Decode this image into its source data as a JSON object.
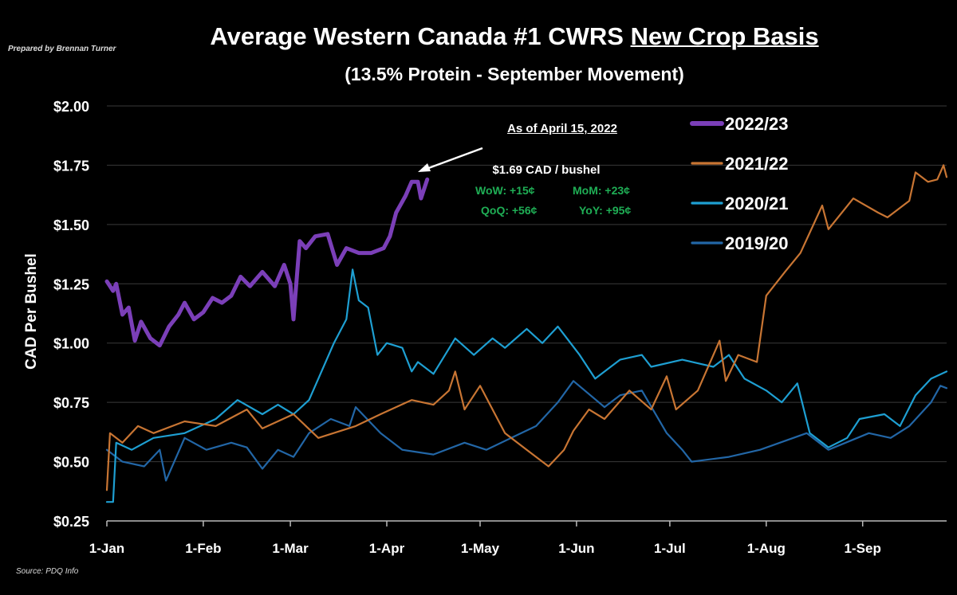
{
  "header": {
    "prepared_by": "Prepared by Brennan Turner",
    "title_main": "Average Western Canada #1 CWRS ",
    "title_underlined": "New Crop Basis",
    "subtitle": "(13.5% Protein - September Movement)",
    "source": "Source: PDQ Info"
  },
  "annotation": {
    "as_of": "As of April 15, 2022",
    "price": "$1.69 CAD / bushel",
    "wow": "WoW: +15¢",
    "mom": "MoM: +23¢",
    "qoq": "QoQ: +56¢",
    "yoy": "YoY: +95¢"
  },
  "chart_data": {
    "type": "line",
    "title": "Average Western Canada #1 CWRS New Crop Basis",
    "subtitle": "(13.5% Protein - September Movement)",
    "xlabel": "",
    "ylabel": "CAD Per Bushel",
    "x_unit": "day of year (0 = 1-Jan)",
    "xlim": [
      0,
      270
    ],
    "ylim": [
      0.25,
      2.0
    ],
    "yticks": [
      0.25,
      0.5,
      0.75,
      1.0,
      1.25,
      1.5,
      1.75,
      2.0
    ],
    "ytick_labels": [
      "$0.25",
      "$0.50",
      "$0.75",
      "$1.00",
      "$1.25",
      "$1.50",
      "$1.75",
      "$2.00"
    ],
    "xticks": [
      0,
      31,
      59,
      90,
      120,
      151,
      181,
      212,
      243
    ],
    "xtick_labels": [
      "1-Jan",
      "1-Feb",
      "1-Mar",
      "1-Apr",
      "1-May",
      "1-Jun",
      "1-Jul",
      "1-Aug",
      "1-Sep"
    ],
    "grid": "horizontal",
    "legend": "top-right",
    "series": [
      {
        "name": "2022/23",
        "color": "#7b3fb8",
        "width": 5,
        "points": [
          [
            0,
            1.26
          ],
          [
            2,
            1.22
          ],
          [
            3,
            1.25
          ],
          [
            5,
            1.12
          ],
          [
            7,
            1.15
          ],
          [
            9,
            1.01
          ],
          [
            11,
            1.09
          ],
          [
            14,
            1.02
          ],
          [
            17,
            0.99
          ],
          [
            20,
            1.07
          ],
          [
            23,
            1.12
          ],
          [
            25,
            1.17
          ],
          [
            28,
            1.1
          ],
          [
            31,
            1.13
          ],
          [
            34,
            1.19
          ],
          [
            37,
            1.17
          ],
          [
            40,
            1.2
          ],
          [
            43,
            1.28
          ],
          [
            46,
            1.24
          ],
          [
            50,
            1.3
          ],
          [
            54,
            1.24
          ],
          [
            57,
            1.33
          ],
          [
            59,
            1.25
          ],
          [
            60,
            1.1
          ],
          [
            62,
            1.43
          ],
          [
            64,
            1.4
          ],
          [
            67,
            1.45
          ],
          [
            71,
            1.46
          ],
          [
            74,
            1.33
          ],
          [
            77,
            1.4
          ],
          [
            81,
            1.38
          ],
          [
            85,
            1.38
          ],
          [
            89,
            1.4
          ],
          [
            91,
            1.45
          ],
          [
            93,
            1.55
          ],
          [
            96,
            1.62
          ],
          [
            98,
            1.68
          ],
          [
            100,
            1.68
          ],
          [
            101,
            1.61
          ],
          [
            103,
            1.69
          ]
        ]
      },
      {
        "name": "2021/22",
        "color": "#c87533",
        "width": 2.2,
        "points": [
          [
            0,
            0.38
          ],
          [
            1,
            0.62
          ],
          [
            5,
            0.58
          ],
          [
            10,
            0.65
          ],
          [
            15,
            0.62
          ],
          [
            25,
            0.67
          ],
          [
            35,
            0.65
          ],
          [
            45,
            0.72
          ],
          [
            50,
            0.64
          ],
          [
            60,
            0.7
          ],
          [
            68,
            0.6
          ],
          [
            80,
            0.65
          ],
          [
            88,
            0.7
          ],
          [
            98,
            0.76
          ],
          [
            105,
            0.74
          ],
          [
            110,
            0.8
          ],
          [
            112,
            0.88
          ],
          [
            115,
            0.72
          ],
          [
            120,
            0.82
          ],
          [
            128,
            0.62
          ],
          [
            135,
            0.55
          ],
          [
            142,
            0.48
          ],
          [
            147,
            0.55
          ],
          [
            150,
            0.63
          ],
          [
            155,
            0.72
          ],
          [
            160,
            0.68
          ],
          [
            168,
            0.8
          ],
          [
            175,
            0.72
          ],
          [
            180,
            0.86
          ],
          [
            183,
            0.72
          ],
          [
            190,
            0.8
          ],
          [
            197,
            1.01
          ],
          [
            199,
            0.84
          ],
          [
            203,
            0.95
          ],
          [
            209,
            0.92
          ],
          [
            212,
            1.2
          ],
          [
            218,
            1.3
          ],
          [
            223,
            1.38
          ],
          [
            230,
            1.58
          ],
          [
            232,
            1.48
          ],
          [
            240,
            1.61
          ],
          [
            248,
            1.55
          ],
          [
            251,
            1.53
          ],
          [
            258,
            1.6
          ],
          [
            260,
            1.72
          ],
          [
            264,
            1.68
          ],
          [
            267,
            1.69
          ],
          [
            269,
            1.75
          ],
          [
            270,
            1.7
          ]
        ]
      },
      {
        "name": "2020/21",
        "color": "#1e9fd2",
        "width": 2.2,
        "points": [
          [
            0,
            0.33
          ],
          [
            2,
            0.33
          ],
          [
            3,
            0.58
          ],
          [
            8,
            0.55
          ],
          [
            15,
            0.6
          ],
          [
            25,
            0.62
          ],
          [
            35,
            0.68
          ],
          [
            42,
            0.76
          ],
          [
            50,
            0.7
          ],
          [
            55,
            0.74
          ],
          [
            60,
            0.7
          ],
          [
            65,
            0.76
          ],
          [
            68,
            0.85
          ],
          [
            73,
            1.0
          ],
          [
            77,
            1.1
          ],
          [
            79,
            1.31
          ],
          [
            81,
            1.18
          ],
          [
            84,
            1.15
          ],
          [
            87,
            0.95
          ],
          [
            90,
            1.0
          ],
          [
            95,
            0.98
          ],
          [
            98,
            0.88
          ],
          [
            100,
            0.92
          ],
          [
            105,
            0.87
          ],
          [
            112,
            1.02
          ],
          [
            118,
            0.95
          ],
          [
            124,
            1.02
          ],
          [
            128,
            0.98
          ],
          [
            135,
            1.06
          ],
          [
            140,
            1.0
          ],
          [
            145,
            1.07
          ],
          [
            152,
            0.95
          ],
          [
            157,
            0.85
          ],
          [
            165,
            0.93
          ],
          [
            172,
            0.95
          ],
          [
            175,
            0.9
          ],
          [
            185,
            0.93
          ],
          [
            195,
            0.9
          ],
          [
            200,
            0.95
          ],
          [
            205,
            0.85
          ],
          [
            212,
            0.8
          ],
          [
            217,
            0.75
          ],
          [
            222,
            0.83
          ],
          [
            226,
            0.62
          ],
          [
            232,
            0.56
          ],
          [
            238,
            0.6
          ],
          [
            242,
            0.68
          ],
          [
            250,
            0.7
          ],
          [
            255,
            0.65
          ],
          [
            260,
            0.78
          ],
          [
            265,
            0.85
          ],
          [
            270,
            0.88
          ]
        ]
      },
      {
        "name": "2019/20",
        "color": "#2266a6",
        "width": 2.2,
        "points": [
          [
            0,
            0.55
          ],
          [
            5,
            0.5
          ],
          [
            12,
            0.48
          ],
          [
            17,
            0.55
          ],
          [
            19,
            0.42
          ],
          [
            25,
            0.6
          ],
          [
            32,
            0.55
          ],
          [
            40,
            0.58
          ],
          [
            45,
            0.56
          ],
          [
            50,
            0.47
          ],
          [
            55,
            0.55
          ],
          [
            60,
            0.52
          ],
          [
            65,
            0.62
          ],
          [
            72,
            0.68
          ],
          [
            78,
            0.65
          ],
          [
            80,
            0.73
          ],
          [
            88,
            0.62
          ],
          [
            95,
            0.55
          ],
          [
            105,
            0.53
          ],
          [
            115,
            0.58
          ],
          [
            122,
            0.55
          ],
          [
            130,
            0.6
          ],
          [
            138,
            0.65
          ],
          [
            145,
            0.75
          ],
          [
            150,
            0.84
          ],
          [
            160,
            0.73
          ],
          [
            165,
            0.78
          ],
          [
            172,
            0.8
          ],
          [
            180,
            0.62
          ],
          [
            185,
            0.55
          ],
          [
            188,
            0.5
          ],
          [
            200,
            0.52
          ],
          [
            210,
            0.55
          ],
          [
            225,
            0.62
          ],
          [
            232,
            0.55
          ],
          [
            245,
            0.62
          ],
          [
            252,
            0.6
          ],
          [
            258,
            0.65
          ],
          [
            265,
            0.75
          ],
          [
            268,
            0.82
          ],
          [
            270,
            0.81
          ]
        ]
      }
    ]
  }
}
